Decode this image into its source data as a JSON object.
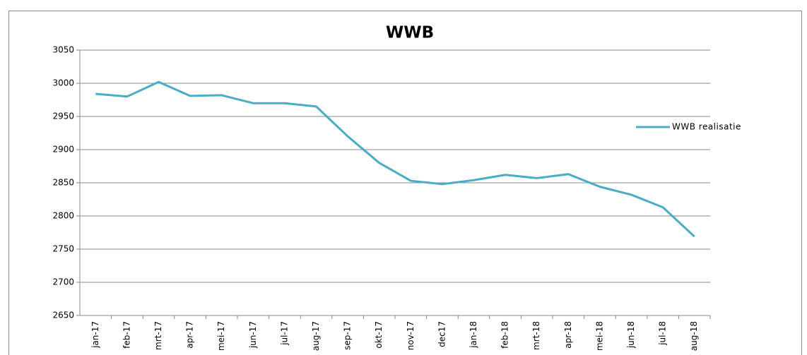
{
  "chart_data": {
    "type": "line",
    "title": "WWB",
    "categories": [
      "jan-17",
      "feb-17",
      "mrt-17",
      "apr-17",
      "mei-17",
      "jun-17",
      "jul-17",
      "aug-17",
      "sep-17",
      "okt-17",
      "nov-17",
      "dec17",
      "jan-18",
      "feb-18",
      "mrt-18",
      "apr-18",
      "mei-18",
      "jun-18",
      "jul-18",
      "aug-18"
    ],
    "series": [
      {
        "name": "WWB realisatie",
        "color": "#4bacc6",
        "values": [
          2984,
          2980,
          3002,
          2981,
          2982,
          2970,
          2970,
          2965,
          2920,
          2880,
          2853,
          2848,
          2854,
          2862,
          2857,
          2863,
          2844,
          2832,
          2813,
          2769
        ]
      }
    ],
    "ylim": [
      2650,
      3050
    ],
    "yticks": [
      2650,
      2700,
      2750,
      2800,
      2850,
      2900,
      2950,
      3000,
      3050
    ],
    "grid": true,
    "legend": "right"
  }
}
